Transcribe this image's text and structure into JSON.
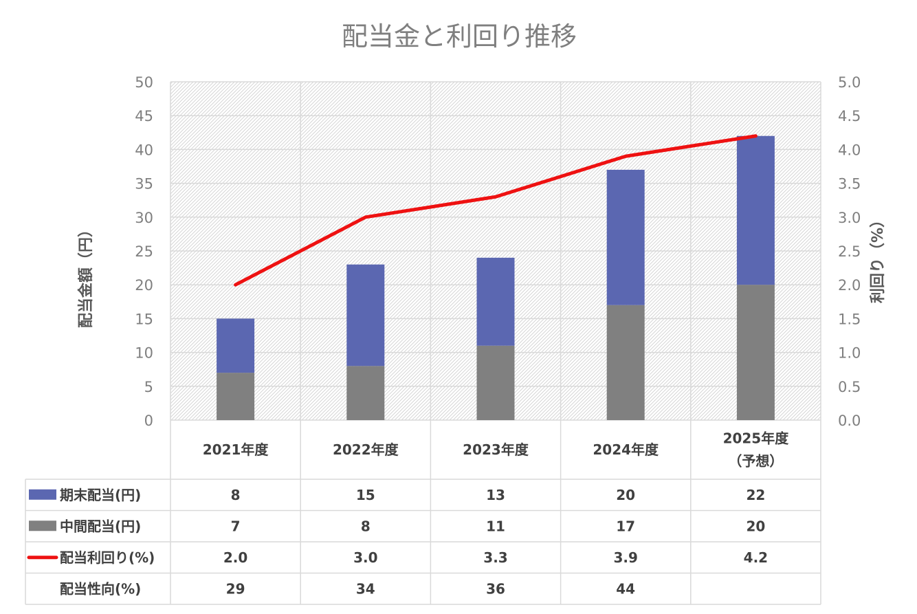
{
  "chart_data": {
    "type": "bar",
    "title": "配当金と利回り推移",
    "categories": [
      [
        "2021年度"
      ],
      [
        "2022年度"
      ],
      [
        "2023年度"
      ],
      [
        "2024年度"
      ],
      [
        "2025年度",
        "（予想）"
      ]
    ],
    "ylabel": "配当金額（円）",
    "y2label": "利回り（%）",
    "ylim": [
      0,
      50
    ],
    "y2lim": [
      0,
      5.0
    ],
    "yticks": [
      "0",
      "5",
      "10",
      "15",
      "20",
      "25",
      "30",
      "35",
      "40",
      "45",
      "50"
    ],
    "y2ticks": [
      "0.0",
      "0.5",
      "1.0",
      "1.5",
      "2.0",
      "2.5",
      "3.0",
      "3.5",
      "4.0",
      "4.5",
      "5.0"
    ],
    "stacked": true,
    "series": [
      {
        "name": "中間配当(円)",
        "type": "bar",
        "axis": "left",
        "color": "#808080",
        "values": [
          7,
          8,
          11,
          17,
          20
        ]
      },
      {
        "name": "期末配当(円)",
        "type": "bar",
        "axis": "left",
        "color": "#5b67b1",
        "values": [
          8,
          15,
          13,
          20,
          22
        ]
      },
      {
        "name": "配当利回り(%)",
        "type": "line",
        "axis": "right",
        "color": "#ee1111",
        "values": [
          2.0,
          3.0,
          3.3,
          3.9,
          4.2
        ]
      }
    ],
    "table": {
      "rows": [
        {
          "label": "期末配当(円)",
          "key": "final",
          "legend": "bar",
          "color": "#5b67b1",
          "values": [
            "8",
            "15",
            "13",
            "20",
            "22"
          ]
        },
        {
          "label": "中間配当(円)",
          "key": "interim",
          "legend": "bar",
          "color": "#808080",
          "values": [
            "7",
            "8",
            "11",
            "17",
            "20"
          ]
        },
        {
          "label": "配当利回り(%)",
          "key": "yield",
          "legend": "line",
          "color": "#ee1111",
          "values": [
            "2.0",
            "3.0",
            "3.3",
            "3.9",
            "4.2"
          ]
        },
        {
          "label": "配当性向(%)",
          "key": "payout",
          "legend": "none",
          "color": "",
          "values": [
            "29",
            "34",
            "36",
            "44",
            ""
          ]
        }
      ]
    },
    "grid": true,
    "plot_background": "hatched"
  }
}
